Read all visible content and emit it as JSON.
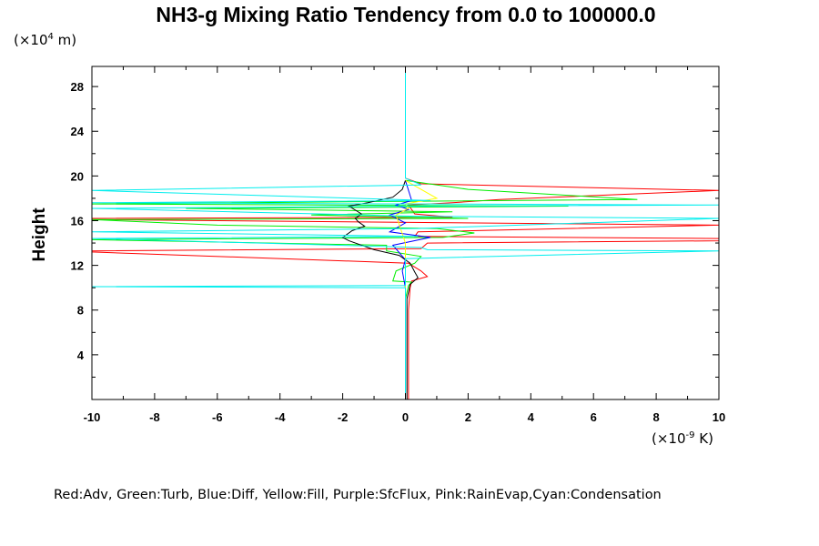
{
  "chart_data": {
    "type": "line",
    "title": "NH3-g Mixing Ratio Tendency from 0.0 to 100000.0",
    "ylabel": "Height",
    "y_unit_prefix": "(×10",
    "y_unit_exp": "4",
    "y_unit_suffix": " m)",
    "x_unit_prefix": "(×10",
    "x_unit_exp": "-9",
    "x_unit_suffix": " K)",
    "xlim": [
      -10,
      10
    ],
    "ylim": [
      0,
      29.8
    ],
    "x_ticks": [
      "-10",
      "-8",
      "-6",
      "-4",
      "-2",
      "0",
      "2",
      "4",
      "6",
      "8",
      "10"
    ],
    "y_ticks": [
      "4",
      "8",
      "12",
      "16",
      "20",
      "24",
      "28"
    ],
    "legend_text": "Red:Adv, Green:Turb, Blue:Diff, Yellow:Fill, Purple:SfcFlux, Pink:RainEvap,Cyan:Condensation",
    "colors": {
      "Adv": "#ff0000",
      "Turb": "#00ee00",
      "Diff": "#0000ff",
      "Fill": "#ffff00",
      "Condensation": "#00eeee",
      "Total": "#000000"
    },
    "series": [
      {
        "color": "#ff0000",
        "points": [
          [
            0.1,
            0
          ],
          [
            0.1,
            4
          ],
          [
            0.1,
            8
          ],
          [
            0.15,
            10
          ],
          [
            0.2,
            10.6
          ],
          [
            0.7,
            11
          ],
          [
            0.5,
            11.5
          ],
          [
            0.1,
            12.2
          ],
          [
            -10,
            13.2
          ],
          [
            -10,
            13.3
          ],
          [
            0.5,
            13.5
          ],
          [
            0.7,
            14
          ],
          [
            10,
            14.2
          ],
          [
            10,
            14.4
          ],
          [
            0.3,
            14.6
          ],
          [
            0.4,
            15
          ],
          [
            10,
            15.6
          ],
          [
            -10,
            16.1
          ],
          [
            -10,
            16.2
          ],
          [
            1.5,
            16.3
          ],
          [
            0.3,
            16.6
          ],
          [
            0.1,
            17.4
          ],
          [
            1.5,
            17.6
          ],
          [
            3,
            17.9
          ],
          [
            10,
            18.7
          ],
          [
            0.5,
            19.3
          ],
          [
            0,
            19.8
          ]
        ]
      },
      {
        "color": "#00ee00",
        "points": [
          [
            0,
            0
          ],
          [
            0,
            9
          ],
          [
            0.1,
            10.2
          ],
          [
            0.2,
            10.5
          ],
          [
            -0.4,
            10.6
          ],
          [
            -0.3,
            11.5
          ],
          [
            0.3,
            12.2
          ],
          [
            0.5,
            12.8
          ],
          [
            -0.6,
            13.3
          ],
          [
            -0.6,
            13.8
          ],
          [
            -10,
            14.3
          ],
          [
            1.2,
            14.5
          ],
          [
            2.2,
            14.9
          ],
          [
            1.0,
            15.3
          ],
          [
            -6,
            15.6
          ],
          [
            -10,
            16.1
          ],
          [
            2.0,
            16.2
          ],
          [
            -3,
            16.5
          ],
          [
            1.5,
            16.8
          ],
          [
            -7,
            17.1
          ],
          [
            5.2,
            17.3
          ],
          [
            -10,
            17.5
          ],
          [
            7.4,
            17.9
          ],
          [
            2.0,
            18.8
          ],
          [
            0,
            19.6
          ]
        ]
      },
      {
        "color": "#0000ff",
        "points": [
          [
            0,
            0
          ],
          [
            0,
            10
          ],
          [
            -0.1,
            11.5
          ],
          [
            0,
            12.5
          ],
          [
            -0.4,
            13.8
          ],
          [
            0.8,
            14.5
          ],
          [
            -0.5,
            15
          ],
          [
            0,
            15.8
          ],
          [
            -0.5,
            16.5
          ],
          [
            0.1,
            17
          ],
          [
            -0.3,
            17.4
          ],
          [
            0.2,
            17.8
          ],
          [
            0,
            19.6
          ]
        ]
      },
      {
        "color": "#ffff00",
        "points": [
          [
            0,
            0
          ],
          [
            0,
            14
          ],
          [
            -0.3,
            16.5
          ],
          [
            0.1,
            17.1
          ],
          [
            0,
            17.5
          ],
          [
            1.0,
            18.0
          ],
          [
            0,
            19.6
          ]
        ]
      },
      {
        "color": "#000000",
        "points": [
          [
            0.05,
            0
          ],
          [
            0.05,
            9
          ],
          [
            0.15,
            10.3
          ],
          [
            0.4,
            10.9
          ],
          [
            0.3,
            11.4
          ],
          [
            0.15,
            12.2
          ],
          [
            -0.2,
            12.9
          ],
          [
            -1.0,
            13.4
          ],
          [
            -1.8,
            14.2
          ],
          [
            -2.0,
            14.5
          ],
          [
            -1.7,
            15.1
          ],
          [
            -1.3,
            15.5
          ],
          [
            -1.5,
            15.9
          ],
          [
            -1.6,
            16.2
          ],
          [
            -1.4,
            16.6
          ],
          [
            -1.8,
            17.3
          ],
          [
            -1.2,
            17.6
          ],
          [
            -0.4,
            18.1
          ],
          [
            -0.1,
            18.8
          ],
          [
            0,
            19.6
          ]
        ]
      },
      {
        "color": "#00eeee",
        "points": [
          [
            0,
            0
          ],
          [
            0,
            10
          ],
          [
            -10,
            10.1
          ],
          [
            0,
            10.2
          ],
          [
            0,
            12.6
          ],
          [
            10,
            13.3
          ],
          [
            0.7,
            13.4
          ],
          [
            0.5,
            13.6
          ],
          [
            -10,
            14.4
          ],
          [
            0.4,
            14.6
          ],
          [
            -10,
            15.0
          ],
          [
            0.4,
            15.3
          ],
          [
            10,
            16.2
          ],
          [
            0.3,
            16.4
          ],
          [
            -10,
            17.1
          ],
          [
            0.5,
            17.3
          ],
          [
            10,
            17.4
          ],
          [
            -10,
            17.6
          ],
          [
            0.8,
            17.8
          ],
          [
            -10,
            18.7
          ],
          [
            0.5,
            19.2
          ],
          [
            0,
            19.8
          ],
          [
            0,
            29.8
          ]
        ]
      }
    ]
  }
}
